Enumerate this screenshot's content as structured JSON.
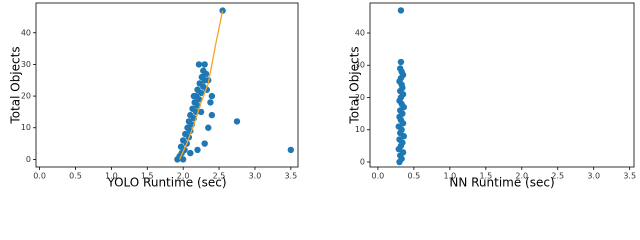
{
  "chart_data": [
    {
      "type": "scatter",
      "x_label": "YOLO Runtime (sec)",
      "y_label": "Total Objects",
      "color": "#1f77b4",
      "xlim": [
        -0.05,
        3.6
      ],
      "ylim": [
        -2.4,
        49.4
      ],
      "xticks": [
        {
          "value": 0,
          "label": "0.0"
        },
        0.5,
        {
          "value": 1,
          "label": "1.0"
        },
        1.5,
        {
          "value": 2,
          "label": "2.0"
        },
        2.5,
        {
          "value": 3,
          "label": "3.0"
        },
        3.5
      ],
      "yticks": [
        0,
        10,
        20,
        30,
        40
      ],
      "x": [
        1.92,
        1.95,
        1.98,
        2.0,
        2.02,
        1.97,
        2.05,
        2.0,
        2.08,
        2.03,
        2.1,
        2.06,
        2.12,
        2.08,
        2.15,
        2.1,
        2.18,
        2.13,
        2.2,
        2.16,
        2.22,
        2.18,
        2.25,
        2.2,
        2.28,
        2.23,
        2.3,
        2.26,
        2.32,
        2.28,
        2.3,
        2.22,
        2.35,
        2.4,
        2.33,
        2.38,
        2.25,
        2.15,
        2.55,
        2.75,
        3.5,
        2.3,
        2.2,
        2.1,
        2.35,
        2.4
      ],
      "y": [
        0,
        1,
        2,
        0,
        3,
        4,
        5,
        6,
        7,
        8,
        9,
        10,
        11,
        12,
        13,
        14,
        15,
        16,
        17,
        18,
        19,
        20,
        21,
        22,
        23,
        24,
        25,
        26,
        27,
        28,
        30,
        30,
        25,
        20,
        22,
        18,
        15,
        20,
        47,
        12,
        3,
        5,
        3,
        2,
        10,
        14
      ],
      "line": {
        "color": "#f5a623",
        "x": [
          1.95,
          2.05,
          2.15,
          2.25,
          2.35,
          2.45,
          2.55
        ],
        "y": [
          0,
          5,
          11,
          18,
          24,
          36,
          47
        ]
      }
    },
    {
      "type": "scatter",
      "x_label": "NN Runtime (sec)",
      "y_label": "Total Objects",
      "color": "#1f77b4",
      "xlim": [
        -0.11,
        3.56
      ],
      "ylim": [
        -1.55,
        49.3
      ],
      "xticks": [
        {
          "value": 0,
          "label": "0.0"
        },
        0.5,
        {
          "value": 1,
          "label": "1.0"
        },
        1.5,
        {
          "value": 2,
          "label": "2.0"
        },
        2.5,
        {
          "value": 3,
          "label": "3.0"
        },
        3.5
      ],
      "yticks": [
        0,
        10,
        20,
        30,
        40
      ],
      "x": [
        0.3,
        0.33,
        0.31,
        0.35,
        0.29,
        0.32,
        0.34,
        0.3,
        0.36,
        0.31,
        0.33,
        0.29,
        0.35,
        0.32,
        0.3,
        0.34,
        0.31,
        0.36,
        0.33,
        0.3,
        0.32,
        0.35,
        0.31,
        0.34,
        0.33,
        0.3,
        0.32,
        0.35,
        0.33,
        0.31,
        0.32,
        0.32
      ],
      "y": [
        0,
        1,
        2,
        3,
        4,
        5,
        6,
        7,
        8,
        9,
        10,
        11,
        12,
        13,
        14,
        15,
        16,
        17,
        18,
        19,
        20,
        21,
        22,
        23,
        24,
        25,
        26,
        27,
        28,
        29,
        31,
        47
      ]
    }
  ]
}
